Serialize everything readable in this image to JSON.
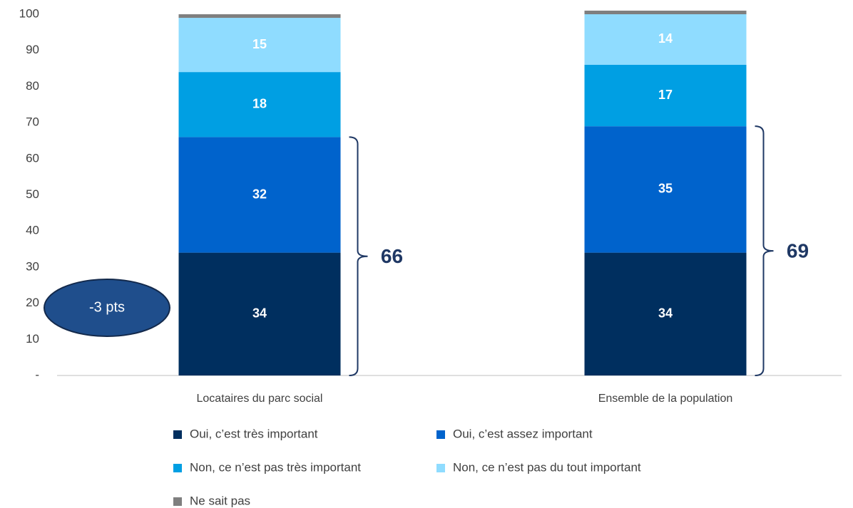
{
  "chart_data": {
    "type": "stacked_bar",
    "categories": [
      "Locataires du parc social",
      "Ensemble de la population"
    ],
    "series": [
      {
        "name": "Oui, c’est très important",
        "color": "#002f5f",
        "values": [
          34,
          34
        ]
      },
      {
        "name": "Oui, c’est assez important",
        "color": "#0063cc",
        "values": [
          32,
          35
        ]
      },
      {
        "name": "Non, ce n’est pas très important",
        "color": "#009fe3",
        "values": [
          18,
          17
        ]
      },
      {
        "name": "Non, ce n’est pas du tout important",
        "color": "#8fdcff",
        "values": [
          15,
          14
        ]
      },
      {
        "name": "Ne sait pas",
        "color": "#7f7f7f",
        "values": [
          1,
          1
        ],
        "labels_shown": false
      }
    ],
    "ylim": [
      0,
      100
    ],
    "yticks": [
      {
        "value": 0,
        "label": "-"
      },
      10,
      20,
      30,
      40,
      50,
      60,
      70,
      80,
      90,
      100
    ],
    "bracket_values": [
      66,
      69
    ],
    "annotation": "-3 pts",
    "legend": "bottom"
  }
}
